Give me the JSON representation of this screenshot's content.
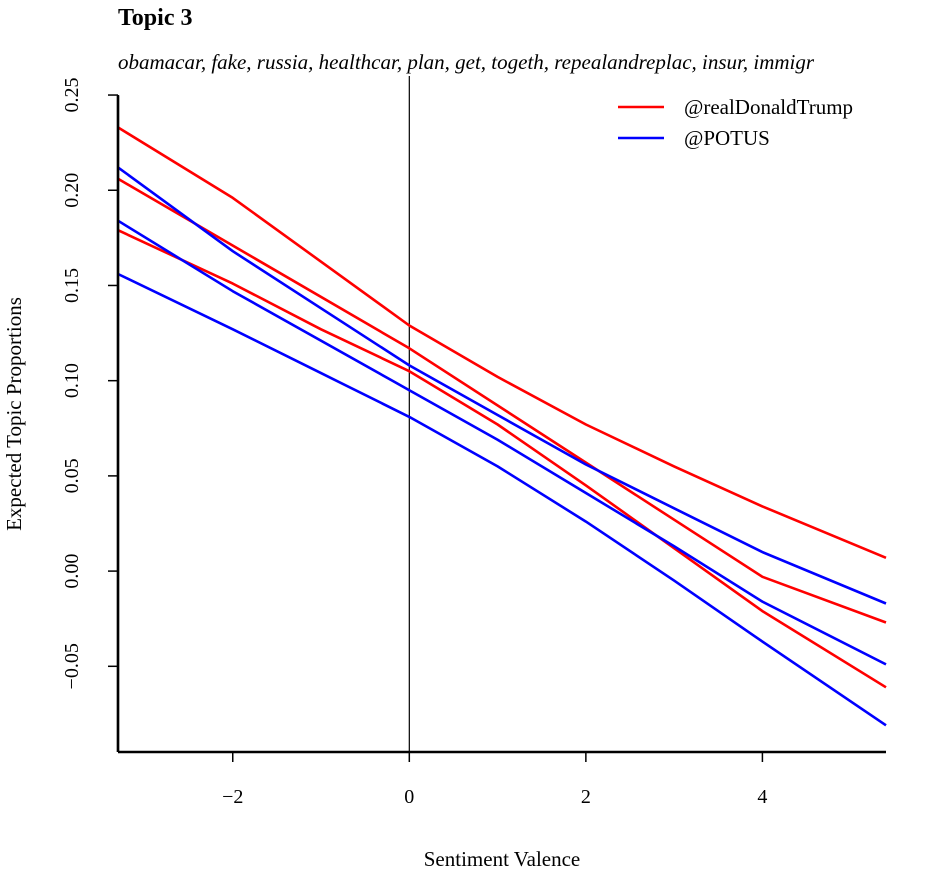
{
  "chart_data": {
    "type": "line",
    "title": "Topic 3",
    "subtitle": "obamacar, fake, russia, healthcar, plan, get, togeth, repealandreplac, insur, immigr",
    "xlabel": "Sentiment Valence",
    "ylabel": "Expected Topic Proportions",
    "xlim": [
      -3.3,
      5.4
    ],
    "ylim": [
      -0.095,
      0.26
    ],
    "xticks": [
      -2,
      0,
      2,
      4
    ],
    "xtick_labels": [
      "−2",
      "0",
      "2",
      "4"
    ],
    "yticks": [
      -0.05,
      0.0,
      0.05,
      0.1,
      0.15,
      0.2,
      0.25
    ],
    "ytick_labels": [
      "−0.05",
      "0.00",
      "0.05",
      "0.10",
      "0.15",
      "0.20",
      "0.25"
    ],
    "vline_x": 0,
    "legend_position": "top-right",
    "grid": false,
    "series": [
      {
        "name": "@realDonaldTrump",
        "color": "#ff0000",
        "legend": true,
        "points": [
          [
            -3.3,
            0.206
          ],
          [
            0,
            0.117
          ],
          [
            2,
            0.057
          ],
          [
            3,
            0.027
          ],
          [
            4,
            -0.003
          ],
          [
            5.4,
            -0.027
          ]
        ]
      },
      {
        "name": "@realDonaldTrump",
        "color": "#ff0000",
        "legend": false,
        "points": [
          [
            -3.3,
            0.233
          ],
          [
            -2,
            0.196
          ],
          [
            0,
            0.129
          ],
          [
            1,
            0.102
          ],
          [
            2,
            0.077
          ],
          [
            3,
            0.055
          ],
          [
            4,
            0.034
          ],
          [
            5.4,
            0.007
          ]
        ]
      },
      {
        "name": "@realDonaldTrump",
        "color": "#ff0000",
        "legend": false,
        "points": [
          [
            -3.3,
            0.179
          ],
          [
            -2,
            0.151
          ],
          [
            -1,
            0.127
          ],
          [
            0,
            0.105
          ],
          [
            1,
            0.077
          ],
          [
            2,
            0.045
          ],
          [
            3,
            0.012
          ],
          [
            4,
            -0.021
          ],
          [
            5.4,
            -0.061
          ]
        ]
      },
      {
        "name": "@POTUS",
        "color": "#0000ff",
        "legend": true,
        "points": [
          [
            -3.3,
            0.212
          ],
          [
            -2,
            0.168
          ],
          [
            0,
            0.108
          ],
          [
            1,
            0.082
          ],
          [
            2,
            0.056
          ],
          [
            3,
            0.033
          ],
          [
            4,
            0.01
          ],
          [
            5.4,
            -0.017
          ]
        ]
      },
      {
        "name": "@POTUS",
        "color": "#0000ff",
        "legend": false,
        "points": [
          [
            -3.3,
            0.184
          ],
          [
            -2,
            0.147
          ],
          [
            0,
            0.095
          ],
          [
            1,
            0.069
          ],
          [
            2,
            0.041
          ],
          [
            3,
            0.013
          ],
          [
            4,
            -0.016
          ],
          [
            5.4,
            -0.049
          ]
        ]
      },
      {
        "name": "@POTUS",
        "color": "#0000ff",
        "legend": false,
        "points": [
          [
            -3.3,
            0.156
          ],
          [
            -2,
            0.127
          ],
          [
            -1,
            0.104
          ],
          [
            0,
            0.081
          ],
          [
            1,
            0.055
          ],
          [
            2,
            0.026
          ],
          [
            3,
            -0.005
          ],
          [
            4,
            -0.037
          ],
          [
            5.4,
            -0.081
          ]
        ]
      }
    ]
  }
}
